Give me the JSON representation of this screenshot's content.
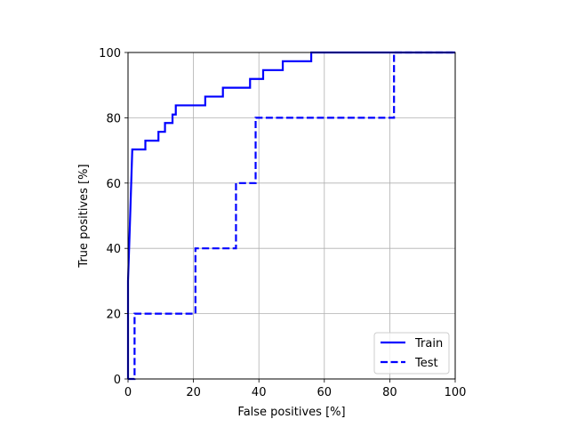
{
  "chart_data": {
    "type": "line",
    "xlabel": "False positives [%]",
    "ylabel": "True positives [%]",
    "xlim": [
      0,
      100
    ],
    "ylim": [
      0,
      100
    ],
    "xticks": [
      0,
      20,
      40,
      60,
      80,
      100
    ],
    "yticks": [
      0,
      20,
      40,
      60,
      80,
      100
    ],
    "grid": true,
    "legend_position": "lower-right",
    "series": [
      {
        "name": "Train",
        "style": "solid",
        "color": "#0000ff",
        "points": [
          [
            0,
            0
          ],
          [
            0,
            30
          ],
          [
            0.5,
            45
          ],
          [
            1.3,
            70.3
          ],
          [
            5.3,
            70.3
          ],
          [
            5.3,
            73
          ],
          [
            9.3,
            73
          ],
          [
            9.3,
            75.7
          ],
          [
            11.3,
            75.7
          ],
          [
            11.3,
            78.4
          ],
          [
            13.6,
            78.4
          ],
          [
            13.6,
            81
          ],
          [
            14.6,
            81
          ],
          [
            14.6,
            83.8
          ],
          [
            23.6,
            83.8
          ],
          [
            23.6,
            86.5
          ],
          [
            29,
            86.5
          ],
          [
            29,
            89.2
          ],
          [
            37.3,
            89.2
          ],
          [
            37.3,
            91.9
          ],
          [
            41.3,
            91.9
          ],
          [
            41.3,
            94.6
          ],
          [
            47.3,
            94.6
          ],
          [
            47.3,
            97.3
          ],
          [
            56,
            97.3
          ],
          [
            56,
            100
          ],
          [
            100,
            100
          ]
        ]
      },
      {
        "name": "Test",
        "style": "dashed",
        "color": "#0000ff",
        "points": [
          [
            0,
            0
          ],
          [
            2,
            0
          ],
          [
            2,
            20
          ],
          [
            20.6,
            20
          ],
          [
            20.6,
            40
          ],
          [
            33,
            40
          ],
          [
            33,
            60
          ],
          [
            39,
            60
          ],
          [
            39,
            80
          ],
          [
            81.3,
            80
          ],
          [
            81.3,
            100
          ],
          [
            100,
            100
          ]
        ]
      }
    ]
  }
}
